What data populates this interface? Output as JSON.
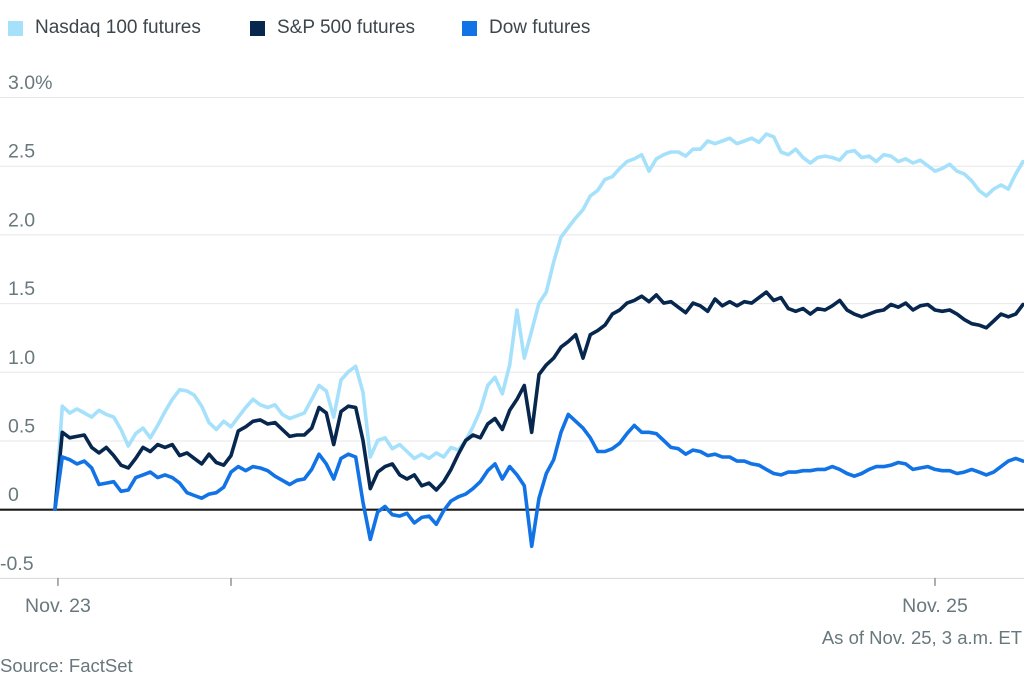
{
  "footer": {
    "as_of": "As of Nov. 25, 3 a.m. ET",
    "source": "Source: FactSet"
  },
  "colors": {
    "nasdaq": "#a6e1fb",
    "sp500": "#07274e",
    "dow": "#1273e6",
    "grid": "#e7e7e7",
    "axis_line": "#d8d8d8",
    "zero_line": "#1b1b1b",
    "tick": "#929da0",
    "axis_text": "#68787d"
  },
  "chart_data": {
    "type": "line",
    "title": "",
    "xlabel": "",
    "ylabel": "",
    "grid": true,
    "legend_position": "top-left",
    "y_axis": {
      "unit": "%",
      "ylim": [
        -0.5,
        3.0
      ],
      "ticks": [
        {
          "value": 3.0,
          "label": "3.0%"
        },
        {
          "value": 2.5,
          "label": "2.5"
        },
        {
          "value": 2.0,
          "label": "2.0"
        },
        {
          "value": 1.5,
          "label": "1.5"
        },
        {
          "value": 1.0,
          "label": "1.0"
        },
        {
          "value": 0.5,
          "label": "0.5"
        },
        {
          "value": 0.0,
          "label": "0"
        },
        {
          "value": -0.5,
          "label": "-0.5"
        }
      ],
      "zero_line": true
    },
    "x_axis": {
      "unit": "hours-from-start (Nov. 23 evening to Nov. 25, 3 a.m. ET)",
      "xlim_hours": [
        0,
        33
      ],
      "ticks": [
        {
          "pos_hours": 0.1,
          "label": "Nov. 23"
        },
        {
          "pos_hours": 6.0,
          "label": ""
        },
        {
          "pos_hours": 30.0,
          "label": "Nov. 25"
        }
      ]
    },
    "sampling": {
      "x_start_hours": 0,
      "x_step_hours": 0.25
    },
    "series": [
      {
        "name": "Nasdaq 100 futures",
        "color": "#a6e1fb",
        "values": [
          0,
          0.75,
          0.7,
          0.73,
          0.7,
          0.67,
          0.72,
          0.69,
          0.67,
          0.58,
          0.46,
          0.55,
          0.59,
          0.52,
          0.61,
          0.71,
          0.8,
          0.87,
          0.86,
          0.83,
          0.75,
          0.63,
          0.58,
          0.64,
          0.6,
          0.67,
          0.74,
          0.8,
          0.76,
          0.74,
          0.76,
          0.69,
          0.66,
          0.68,
          0.7,
          0.8,
          0.9,
          0.86,
          0.67,
          0.94,
          1.0,
          1.04,
          0.85,
          0.38,
          0.5,
          0.52,
          0.44,
          0.47,
          0.42,
          0.37,
          0.4,
          0.37,
          0.41,
          0.38,
          0.45,
          0.43,
          0.5,
          0.6,
          0.72,
          0.9,
          0.96,
          0.84,
          1.05,
          1.45,
          1.1,
          1.3,
          1.5,
          1.58,
          1.8,
          1.98,
          2.05,
          2.12,
          2.18,
          2.28,
          2.32,
          2.4,
          2.42,
          2.48,
          2.53,
          2.55,
          2.58,
          2.46,
          2.55,
          2.58,
          2.6,
          2.6,
          2.57,
          2.62,
          2.62,
          2.68,
          2.66,
          2.68,
          2.7,
          2.66,
          2.68,
          2.7,
          2.67,
          2.73,
          2.71,
          2.6,
          2.58,
          2.62,
          2.56,
          2.52,
          2.56,
          2.57,
          2.56,
          2.54,
          2.6,
          2.61,
          2.56,
          2.57,
          2.53,
          2.58,
          2.57,
          2.53,
          2.55,
          2.52,
          2.54,
          2.5,
          2.46,
          2.48,
          2.51,
          2.46,
          2.44,
          2.39,
          2.32,
          2.28,
          2.33,
          2.36,
          2.33,
          2.44,
          2.53
        ]
      },
      {
        "name": "S&P 500 futures",
        "color": "#07274e",
        "values": [
          0,
          0.56,
          0.52,
          0.53,
          0.54,
          0.45,
          0.41,
          0.45,
          0.39,
          0.32,
          0.3,
          0.37,
          0.45,
          0.42,
          0.47,
          0.45,
          0.47,
          0.39,
          0.41,
          0.37,
          0.33,
          0.4,
          0.34,
          0.32,
          0.39,
          0.57,
          0.6,
          0.64,
          0.65,
          0.62,
          0.63,
          0.58,
          0.53,
          0.54,
          0.54,
          0.59,
          0.74,
          0.7,
          0.47,
          0.71,
          0.75,
          0.74,
          0.5,
          0.15,
          0.27,
          0.31,
          0.33,
          0.25,
          0.22,
          0.25,
          0.17,
          0.19,
          0.14,
          0.2,
          0.29,
          0.4,
          0.5,
          0.54,
          0.52,
          0.62,
          0.66,
          0.58,
          0.72,
          0.8,
          0.9,
          0.56,
          0.98,
          1.05,
          1.1,
          1.18,
          1.22,
          1.27,
          1.1,
          1.27,
          1.3,
          1.34,
          1.42,
          1.45,
          1.5,
          1.52,
          1.55,
          1.51,
          1.56,
          1.5,
          1.51,
          1.47,
          1.43,
          1.5,
          1.48,
          1.44,
          1.53,
          1.48,
          1.51,
          1.48,
          1.51,
          1.5,
          1.54,
          1.58,
          1.52,
          1.54,
          1.46,
          1.44,
          1.46,
          1.42,
          1.46,
          1.45,
          1.48,
          1.52,
          1.45,
          1.42,
          1.4,
          1.42,
          1.44,
          1.45,
          1.49,
          1.47,
          1.5,
          1.45,
          1.48,
          1.49,
          1.45,
          1.44,
          1.45,
          1.42,
          1.38,
          1.35,
          1.34,
          1.32,
          1.37,
          1.42,
          1.4,
          1.42,
          1.49
        ]
      },
      {
        "name": "Dow futures",
        "color": "#1273e6",
        "values": [
          0,
          0.38,
          0.36,
          0.33,
          0.35,
          0.3,
          0.18,
          0.19,
          0.2,
          0.13,
          0.14,
          0.23,
          0.25,
          0.27,
          0.23,
          0.25,
          0.23,
          0.19,
          0.12,
          0.1,
          0.08,
          0.11,
          0.12,
          0.16,
          0.27,
          0.31,
          0.28,
          0.31,
          0.3,
          0.28,
          0.24,
          0.21,
          0.18,
          0.21,
          0.22,
          0.29,
          0.4,
          0.33,
          0.22,
          0.37,
          0.4,
          0.38,
          0.05,
          -0.22,
          -0.02,
          0.02,
          -0.04,
          -0.05,
          -0.03,
          -0.1,
          -0.06,
          -0.05,
          -0.11,
          -0.01,
          0.06,
          0.09,
          0.11,
          0.15,
          0.2,
          0.28,
          0.33,
          0.22,
          0.31,
          0.25,
          0.17,
          -0.27,
          0.08,
          0.26,
          0.36,
          0.56,
          0.69,
          0.64,
          0.59,
          0.52,
          0.42,
          0.42,
          0.44,
          0.48,
          0.55,
          0.61,
          0.56,
          0.56,
          0.55,
          0.5,
          0.45,
          0.44,
          0.4,
          0.43,
          0.42,
          0.39,
          0.4,
          0.38,
          0.38,
          0.35,
          0.35,
          0.33,
          0.32,
          0.29,
          0.26,
          0.25,
          0.27,
          0.27,
          0.28,
          0.28,
          0.29,
          0.29,
          0.31,
          0.29,
          0.26,
          0.24,
          0.26,
          0.29,
          0.31,
          0.31,
          0.32,
          0.34,
          0.33,
          0.29,
          0.3,
          0.31,
          0.29,
          0.28,
          0.28,
          0.26,
          0.27,
          0.29,
          0.27,
          0.25,
          0.27,
          0.31,
          0.35,
          0.37,
          0.35
        ]
      }
    ]
  }
}
